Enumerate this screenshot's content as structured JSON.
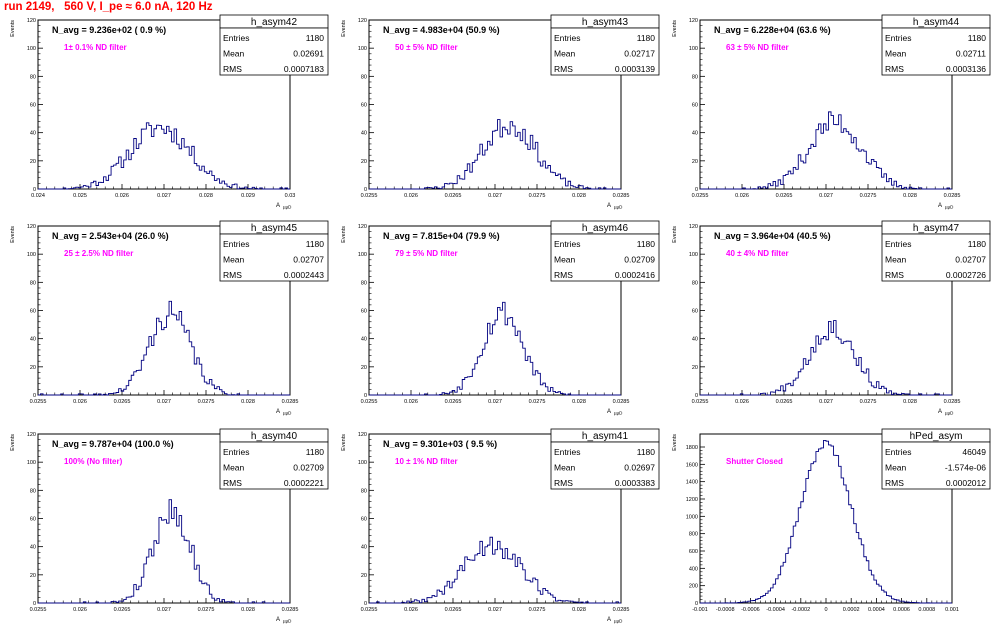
{
  "title": "run 2149,   560 V, I_pe ≈ 6.0 nA, 120 Hz",
  "chart_data": [
    {
      "type": "bar",
      "title": "h_asym42",
      "xlabel": "A",
      "xlabel_sub": "µµD",
      "ylabel": "Events",
      "navg": "N_avg = 9.236e+02 ( 0.9 %)",
      "filter": "1± 0.1% ND filter",
      "stats": [
        {
          "label": "Entries",
          "value": "1180"
        },
        {
          "label": "Mean",
          "value": "0.02691"
        },
        {
          "label": "RMS",
          "value": "0.0007183"
        }
      ],
      "xlim": [
        0.024,
        0.03
      ],
      "xticks": [
        "0.024",
        "0.025",
        "0.026",
        "0.027",
        "0.028",
        "0.029",
        "0.03"
      ],
      "ylim": [
        0,
        120
      ],
      "yticks": [
        "0",
        "20",
        "40",
        "60",
        "80",
        "100",
        "120"
      ],
      "mean": 0.02691,
      "rms": 0.0007183,
      "peak": 44,
      "dx": 6e-05,
      "seed": 11
    },
    {
      "type": "bar",
      "title": "h_asym43",
      "xlabel": "A",
      "xlabel_sub": "µµD",
      "ylabel": "Events",
      "navg": "N_avg = 4.983e+04 (50.9 %)",
      "filter": "50 ± 5% ND filter",
      "stats": [
        {
          "label": "Entries",
          "value": "1180"
        },
        {
          "label": "Mean",
          "value": "0.02717"
        },
        {
          "label": "RMS",
          "value": "0.0003139"
        }
      ],
      "xlim": [
        0.0255,
        0.0285
      ],
      "xticks": [
        "0.0255",
        "0.026",
        "0.0265",
        "0.027",
        "0.0275",
        "0.028",
        "0.0285"
      ],
      "ylim": [
        0,
        120
      ],
      "yticks": [
        "0",
        "20",
        "40",
        "60",
        "80",
        "100",
        "120"
      ],
      "mean": 0.02717,
      "rms": 0.0003139,
      "peak": 46,
      "dx": 3e-05,
      "seed": 23
    },
    {
      "type": "bar",
      "title": "h_asym44",
      "xlabel": "A",
      "xlabel_sub": "µµD",
      "ylabel": "Events",
      "navg": "N_avg = 6.228e+04 (63.6 %)",
      "filter": "63 ± 5% ND filter",
      "stats": [
        {
          "label": "Entries",
          "value": "1180"
        },
        {
          "label": "Mean",
          "value": "0.02711"
        },
        {
          "label": "RMS",
          "value": "0.0003136"
        }
      ],
      "xlim": [
        0.0255,
        0.0285
      ],
      "xticks": [
        "0.0255",
        "0.026",
        "0.0265",
        "0.027",
        "0.0275",
        "0.028",
        "0.0285"
      ],
      "ylim": [
        0,
        120
      ],
      "yticks": [
        "0",
        "20",
        "40",
        "60",
        "80",
        "100",
        "120"
      ],
      "mean": 0.02711,
      "rms": 0.0003136,
      "peak": 48,
      "dx": 3e-05,
      "seed": 37
    },
    {
      "type": "bar",
      "title": "h_asym45",
      "xlabel": "A",
      "xlabel_sub": "µµD",
      "ylabel": "Events",
      "navg": "N_avg = 2.543e+04 (26.0 %)",
      "filter": "25 ± 2.5% ND filter",
      "stats": [
        {
          "label": "Entries",
          "value": "1180"
        },
        {
          "label": "Mean",
          "value": "0.02707"
        },
        {
          "label": "RMS",
          "value": "0.0002443"
        }
      ],
      "xlim": [
        0.0255,
        0.0285
      ],
      "xticks": [
        "0.0255",
        "0.026",
        "0.0265",
        "0.027",
        "0.0275",
        "0.028",
        "0.0285"
      ],
      "ylim": [
        0,
        120
      ],
      "yticks": [
        "0",
        "20",
        "40",
        "60",
        "80",
        "100",
        "120"
      ],
      "mean": 0.02707,
      "rms": 0.0002443,
      "peak": 58,
      "dx": 3e-05,
      "seed": 41
    },
    {
      "type": "bar",
      "title": "h_asym46",
      "xlabel": "A",
      "xlabel_sub": "µµD",
      "ylabel": "Events",
      "navg": "N_avg = 7.815e+04 (79.9 %)",
      "filter": "79 ± 5% ND filter",
      "stats": [
        {
          "label": "Entries",
          "value": "1180"
        },
        {
          "label": "Mean",
          "value": "0.02709"
        },
        {
          "label": "RMS",
          "value": "0.0002416"
        }
      ],
      "xlim": [
        0.0255,
        0.0285
      ],
      "xticks": [
        "0.0255",
        "0.026",
        "0.0265",
        "0.027",
        "0.0275",
        "0.028",
        "0.0285"
      ],
      "ylim": [
        0,
        120
      ],
      "yticks": [
        "0",
        "20",
        "40",
        "60",
        "80",
        "100",
        "120"
      ],
      "mean": 0.02709,
      "rms": 0.0002416,
      "peak": 59,
      "dx": 3e-05,
      "seed": 53
    },
    {
      "type": "bar",
      "title": "h_asym47",
      "xlabel": "A",
      "xlabel_sub": "µµD",
      "ylabel": "Events",
      "navg": "N_avg = 3.964e+04 (40.5 %)",
      "filter": "40 ± 4% ND filter",
      "stats": [
        {
          "label": "Entries",
          "value": "1180"
        },
        {
          "label": "Mean",
          "value": "0.02707"
        },
        {
          "label": "RMS",
          "value": "0.0002726"
        }
      ],
      "xlim": [
        0.0255,
        0.0285
      ],
      "xticks": [
        "0.0255",
        "0.026",
        "0.0265",
        "0.027",
        "0.0275",
        "0.028",
        "0.0285"
      ],
      "ylim": [
        0,
        120
      ],
      "yticks": [
        "0",
        "20",
        "40",
        "60",
        "80",
        "100",
        "120"
      ],
      "mean": 0.02707,
      "rms": 0.0002726,
      "peak": 48,
      "dx": 3e-05,
      "seed": 67
    },
    {
      "type": "bar",
      "title": "h_asym40",
      "xlabel": "A",
      "xlabel_sub": "µµD",
      "ylabel": "Events",
      "navg": "N_avg = 9.787e+04 (100.0 %)",
      "filter": "100% (No filter)",
      "stats": [
        {
          "label": "Entries",
          "value": "1180"
        },
        {
          "label": "Mean",
          "value": "0.02709"
        },
        {
          "label": "RMS",
          "value": "0.0002221"
        }
      ],
      "xlim": [
        0.0255,
        0.0285
      ],
      "xticks": [
        "0.0255",
        "0.026",
        "0.0265",
        "0.027",
        "0.0275",
        "0.028",
        "0.0285"
      ],
      "ylim": [
        0,
        120
      ],
      "yticks": [
        "0",
        "20",
        "40",
        "60",
        "80",
        "100",
        "120"
      ],
      "mean": 0.02709,
      "rms": 0.0002221,
      "peak": 66,
      "dx": 3e-05,
      "seed": 79
    },
    {
      "type": "bar",
      "title": "h_asym41",
      "xlabel": "A",
      "xlabel_sub": "µµD",
      "ylabel": "Events",
      "navg": "N_avg = 9.301e+03 ( 9.5 %)",
      "filter": "10 ± 1% ND filter",
      "stats": [
        {
          "label": "Entries",
          "value": "1180"
        },
        {
          "label": "Mean",
          "value": "0.02697"
        },
        {
          "label": "RMS",
          "value": "0.0003383"
        }
      ],
      "xlim": [
        0.0255,
        0.0285
      ],
      "xticks": [
        "0.0255",
        "0.026",
        "0.0265",
        "0.027",
        "0.0275",
        "0.028",
        "0.0285"
      ],
      "ylim": [
        0,
        120
      ],
      "yticks": [
        "0",
        "20",
        "40",
        "60",
        "80",
        "100",
        "120"
      ],
      "mean": 0.02697,
      "rms": 0.0003383,
      "peak": 42,
      "dx": 3e-05,
      "seed": 89
    },
    {
      "type": "bar",
      "title": "hPed_asym",
      "xlabel": "",
      "xlabel_sub": "",
      "ylabel": "Events",
      "navg": "",
      "filter": "Shutter Closed",
      "stats": [
        {
          "label": "Entries",
          "value": "46049"
        },
        {
          "label": "Mean",
          "value": "-1.574e-06"
        },
        {
          "label": "RMS",
          "value": "0.0002012"
        }
      ],
      "xlim": [
        -0.001,
        0.001
      ],
      "xticks": [
        "-0.001",
        "-0.0008",
        "-0.0006",
        "-0.0004",
        "-0.0002",
        "0",
        "0.0002",
        "0.0004",
        "0.0006",
        "0.0008",
        "0.001"
      ],
      "ylim": [
        0,
        1950
      ],
      "yticks": [
        "0",
        "200",
        "400",
        "600",
        "800",
        "1000",
        "1200",
        "1400",
        "1600",
        "1800"
      ],
      "mean": -1.574e-06,
      "rms": 0.0002012,
      "peak": 1840,
      "dx": 2e-05,
      "seed": 97
    }
  ]
}
